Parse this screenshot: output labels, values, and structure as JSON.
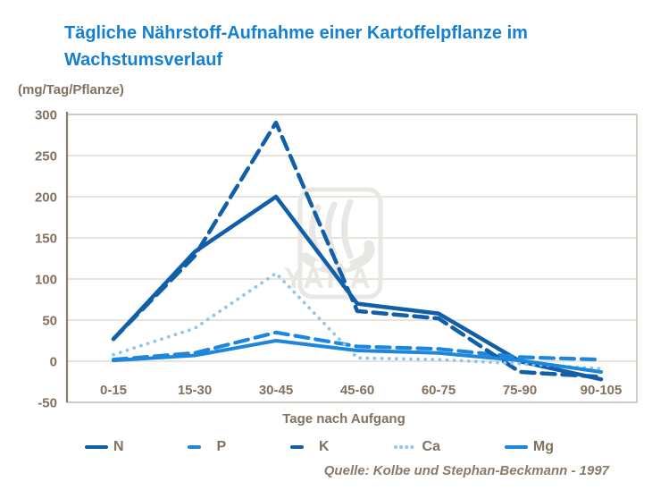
{
  "title": "Tägliche Nährstoff-Aufnahme einer Kartoffelpflanze im Wachstumsverlauf",
  "unit_label": "(mg/Tag/Pflanze)",
  "source": "Quelle: Kolbe und Stephan-Beckmann  - 1997",
  "watermark_text": "YARA",
  "colors": {
    "title_blue": "#1580D2",
    "dark_blue": "#115FA8",
    "bright_blue": "#1E87DC",
    "light_blue": "#90C5F0",
    "text_brown": "#82715F",
    "gridline": "#DBD4C8",
    "plot_border": "#C6BDAF",
    "axis_line": "#8E7D6B",
    "watermark_gray": "#E9E7E3"
  },
  "chart_data": {
    "type": "line",
    "title": "Tägliche Nährstoff-Aufnahme einer Kartoffelpflanze im Wachstumsverlauf",
    "categories": [
      "0-15",
      "15-30",
      "30-45",
      "45-60",
      "60-75",
      "75-90",
      "90-105"
    ],
    "xlabel": "Tage nach Aufgang",
    "ylabel": "(mg/Tag/Pflanze)",
    "ylim": [
      -50,
      300
    ],
    "ytick_step": 50,
    "yticks": [
      300,
      250,
      200,
      150,
      100,
      50,
      0,
      -50
    ],
    "grid": true,
    "legend_position": "bottom",
    "series": [
      {
        "name": "N",
        "style": "solid",
        "color": "#115FA8",
        "width": 4.5,
        "values": [
          27,
          133,
          200,
          70,
          58,
          0,
          -22
        ]
      },
      {
        "name": "P",
        "style": "dashed",
        "color": "#1E87DC",
        "width": 4.2,
        "values": [
          2,
          10,
          35,
          18,
          15,
          5,
          2
        ]
      },
      {
        "name": "K",
        "style": "dashed",
        "color": "#115FA8",
        "width": 4.5,
        "values": [
          27,
          128,
          290,
          61,
          52,
          -13,
          -19
        ]
      },
      {
        "name": "Ca",
        "style": "dotted",
        "color": "#90C5F0",
        "width": 3.8,
        "values": [
          8,
          40,
          107,
          4,
          2,
          -3,
          -9
        ]
      },
      {
        "name": "Mg",
        "style": "solid",
        "color": "#1E87DC",
        "width": 4.0,
        "values": [
          1,
          7,
          25,
          13,
          10,
          1,
          -13
        ]
      }
    ]
  }
}
